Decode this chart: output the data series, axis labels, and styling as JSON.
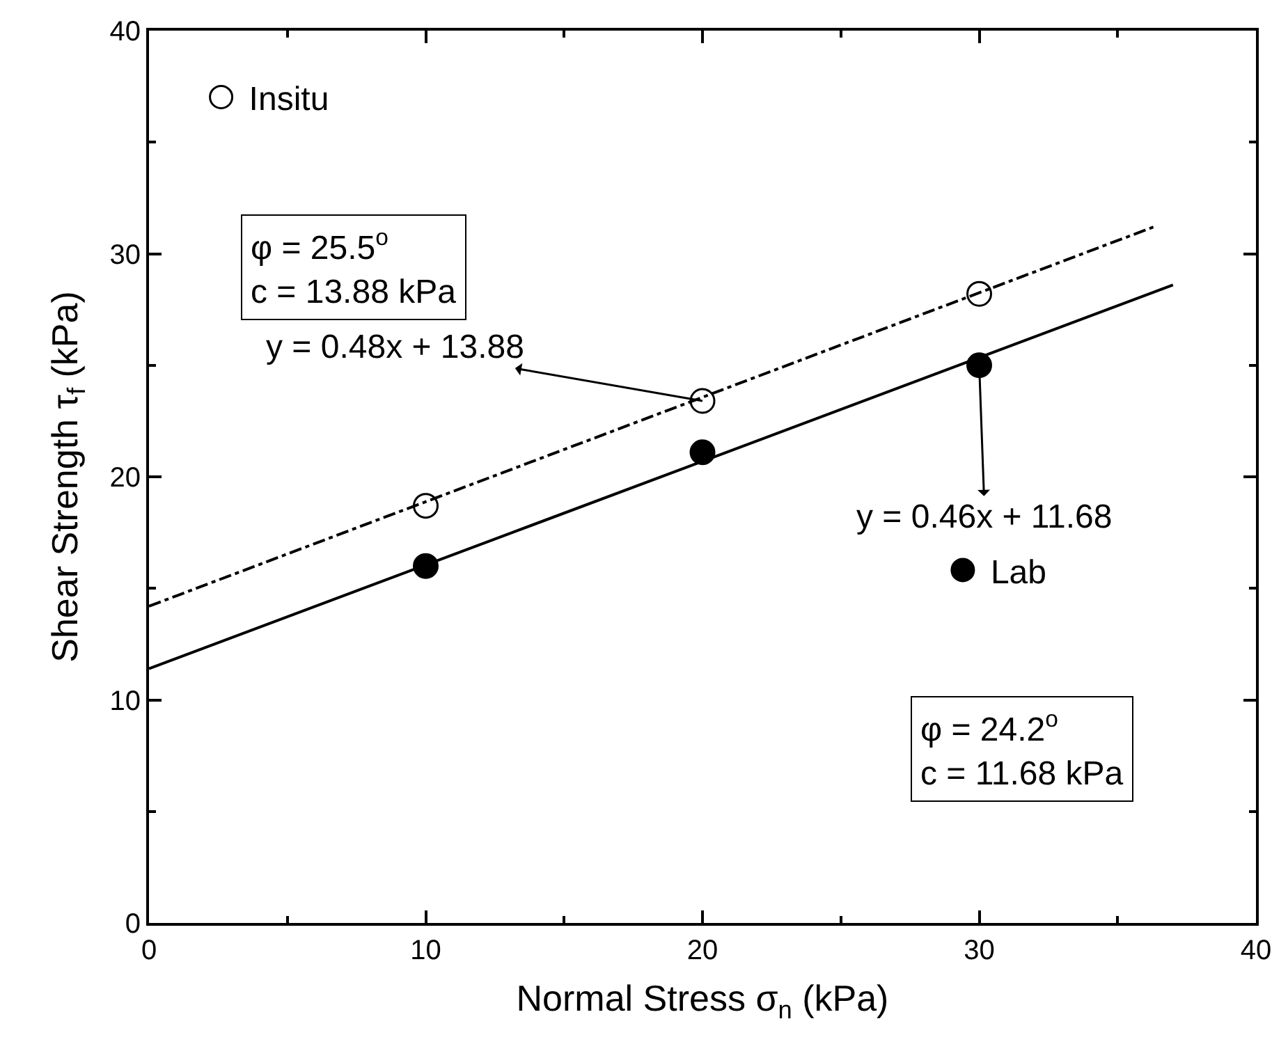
{
  "chart_data": {
    "type": "scatter",
    "xlabel": "Normal Stress σ$_{n}$ (kPa)",
    "ylabel": "Shear Strength τ$_{f}$ (kPa)",
    "xlim": [
      0,
      40
    ],
    "ylim": [
      0,
      40
    ],
    "xticks": [
      0,
      10,
      20,
      30,
      40
    ],
    "yticks": [
      0,
      10,
      20,
      30,
      40
    ],
    "legend": "top left",
    "series": [
      {
        "name": "Insitu",
        "color": "#000000",
        "marker": "circle",
        "x": [
          10,
          20,
          30
        ],
        "values": [
          18.7,
          23.4,
          28.2
        ]
      },
      {
        "name": "Lab",
        "color": "#000000",
        "marker": "circle",
        "x": [
          10,
          20,
          30
        ],
        "values": [
          16.0,
          21.1,
          25.0
        ]
      },
      {
        "type": "line",
        "color": "#000000",
        "line_style": "dashdot",
        "x": [
          0,
          36.3
        ],
        "values": [
          14.2,
          31.2
        ]
      },
      {
        "type": "line",
        "color": "#000000",
        "line_style": "solid",
        "x": [
          0,
          37
        ],
        "values": [
          11.4,
          28.6
        ]
      }
    ],
    "annotations": [
      "φ = 25.5$^{o}$\nc = 13.88 kPa",
      {
        "text": "y = 0.48x + 13.88",
        "x": 20,
        "y": 23.4
      },
      {
        "text": "y = 0.46x + 11.68",
        "x": 30,
        "y": 25.0
      },
      "φ = 24.2$^{o}$\nc = 11.68 kPa"
    ]
  }
}
